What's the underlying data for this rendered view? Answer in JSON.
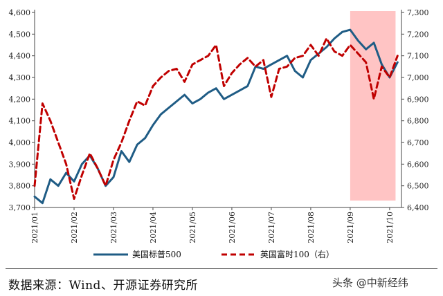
{
  "chart_data": {
    "type": "line",
    "title": "",
    "highlight": {
      "from": "2021/09",
      "to": "2021/10+",
      "color": "#ffc4c4"
    },
    "left_axis": {
      "ylim": [
        3700,
        4600
      ],
      "ticks": [
        "4,600",
        "4,500",
        "4,400",
        "4,300",
        "4,200",
        "4,100",
        "4,000",
        "3,900",
        "3,800",
        "3,700"
      ]
    },
    "right_axis": {
      "ylim": [
        6400,
        7300
      ],
      "ticks": [
        "7,300",
        "7,200",
        "7,100",
        "7,000",
        "6,900",
        "6,800",
        "6,700",
        "6,600",
        "6,500",
        "6,400"
      ]
    },
    "x_ticks": [
      "2021/01",
      "2021/02",
      "2021/03",
      "2021/04",
      "2021/05",
      "2021/06",
      "2021/07",
      "2021/08",
      "2021/09",
      "2021/10"
    ],
    "series": [
      {
        "name": "美国标普500",
        "axis": "left",
        "color": "#1f5c85",
        "style": "solid",
        "x": [
          0.0,
          0.2,
          0.4,
          0.6,
          0.8,
          1.0,
          1.2,
          1.4,
          1.6,
          1.8,
          2.0,
          2.2,
          2.4,
          2.6,
          2.8,
          3.0,
          3.2,
          3.4,
          3.6,
          3.8,
          4.0,
          4.2,
          4.4,
          4.6,
          4.8,
          5.0,
          5.2,
          5.4,
          5.6,
          5.8,
          6.0,
          6.2,
          6.4,
          6.6,
          6.8,
          7.0,
          7.2,
          7.4,
          7.6,
          7.8,
          8.0,
          8.2,
          8.4,
          8.6,
          8.8,
          9.0,
          9.2
        ],
        "values": [
          3750,
          3720,
          3830,
          3800,
          3860,
          3820,
          3900,
          3940,
          3880,
          3800,
          3840,
          3960,
          3910,
          3990,
          4020,
          4080,
          4130,
          4160,
          4190,
          4220,
          4180,
          4200,
          4230,
          4250,
          4200,
          4220,
          4240,
          4260,
          4350,
          4340,
          4360,
          4380,
          4400,
          4330,
          4300,
          4380,
          4410,
          4440,
          4480,
          4510,
          4520,
          4470,
          4430,
          4460,
          4360,
          4300,
          4370
        ]
      },
      {
        "name": "英国富时100（右）",
        "axis": "right",
        "color": "#c00000",
        "style": "dashed",
        "x": [
          0.0,
          0.2,
          0.4,
          0.6,
          0.8,
          1.0,
          1.2,
          1.4,
          1.6,
          1.8,
          2.0,
          2.2,
          2.4,
          2.6,
          2.8,
          3.0,
          3.2,
          3.4,
          3.6,
          3.8,
          4.0,
          4.2,
          4.4,
          4.6,
          4.8,
          5.0,
          5.2,
          5.4,
          5.6,
          5.8,
          6.0,
          6.2,
          6.4,
          6.6,
          6.8,
          7.0,
          7.2,
          7.4,
          7.6,
          7.8,
          8.0,
          8.2,
          8.4,
          8.6,
          8.8,
          9.0,
          9.2
        ],
        "values": [
          6500,
          6880,
          6800,
          6700,
          6600,
          6440,
          6550,
          6650,
          6580,
          6500,
          6620,
          6700,
          6800,
          6890,
          6870,
          6960,
          7000,
          7030,
          7040,
          6980,
          7060,
          7080,
          7100,
          7150,
          6960,
          7020,
          7060,
          7090,
          7050,
          7080,
          6910,
          7040,
          7050,
          7090,
          7100,
          7150,
          7100,
          7180,
          7120,
          7100,
          7150,
          7110,
          7070,
          6900,
          7050,
          7000,
          7100
        ]
      }
    ]
  },
  "legend": {
    "items": [
      {
        "label": "美国标普500",
        "color": "#1f5c85",
        "style": "solid"
      },
      {
        "label": "英国富时100（右）",
        "color": "#c00000",
        "style": "dashed"
      }
    ]
  },
  "footer": {
    "source": "数据来源：Wind、开源证券研究所",
    "watermark": "头条 @中新经纬"
  }
}
